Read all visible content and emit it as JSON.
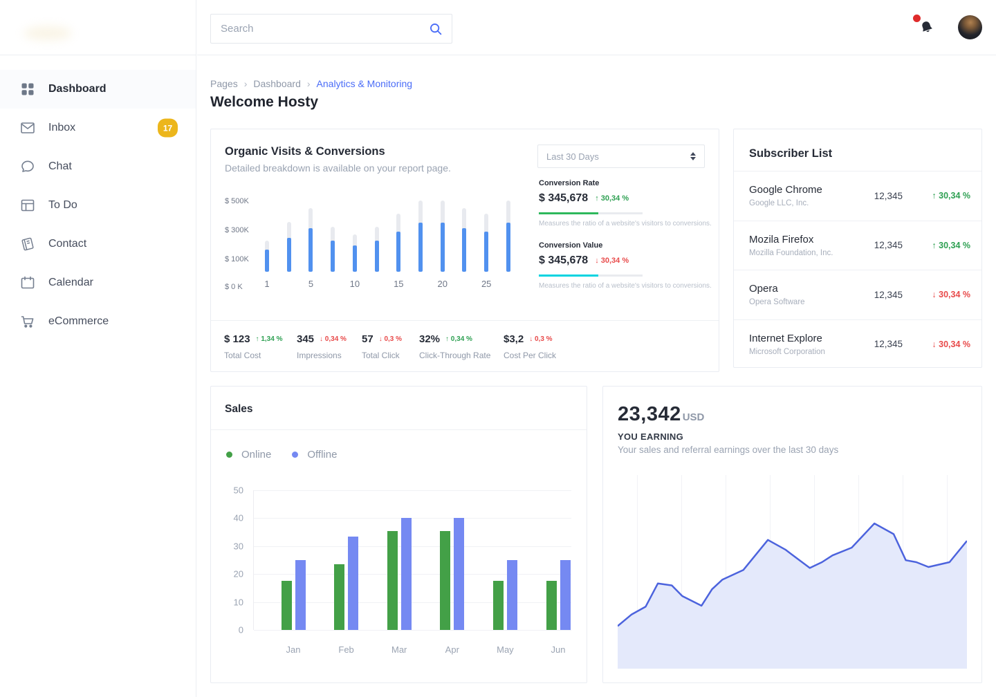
{
  "icons": {
    "trend_up": "↑",
    "trend_down": "↓",
    "chevron": "›"
  },
  "colors": {
    "accent_blue": "#4a6cf7",
    "positive": "#2ea052",
    "negative": "#e84a4a",
    "badge_yellow": "#ecb61c"
  },
  "sidebar": {
    "items": [
      {
        "label": "Dashboard",
        "icon": "dashboard-grid",
        "active": true
      },
      {
        "label": "Inbox",
        "icon": "envelope",
        "badge": "17"
      },
      {
        "label": "Chat",
        "icon": "chat-bubble"
      },
      {
        "label": "To Do",
        "icon": "layout"
      },
      {
        "label": "Contact",
        "icon": "book"
      },
      {
        "label": "Calendar",
        "icon": "calendar"
      },
      {
        "label": "eCommerce",
        "icon": "cart"
      }
    ]
  },
  "topbar": {
    "search_placeholder": "Search"
  },
  "breadcrumb": {
    "items": [
      "Pages",
      "Dashboard",
      "Analytics & Monitoring"
    ]
  },
  "page_title": "Welcome Hosty",
  "organic": {
    "title": "Organic Visits & Conversions",
    "subtitle": "Detailed breakdown is available on your report page.",
    "period_select": "Last 30 Days",
    "chart_data": {
      "type": "bar",
      "stacked": true,
      "x_labels": [
        "1",
        "5",
        "10",
        "15",
        "20",
        "25"
      ],
      "y_labels": [
        "$ 500K",
        "$ 300K",
        "$ 100K",
        "$ 0 K"
      ],
      "ylim": [
        0,
        550
      ],
      "unit": "K$",
      "series": [
        {
          "name": "visits",
          "color": "#5191ef",
          "values": [
            160,
            245,
            310,
            225,
            190,
            225,
            285,
            350,
            350,
            310,
            285,
            350
          ]
        },
        {
          "name": "total",
          "color": "#e8eaef",
          "values": [
            225,
            355,
            455,
            320,
            265,
            320,
            415,
            510,
            510,
            455,
            415,
            510
          ]
        }
      ]
    },
    "metrics": [
      {
        "label": "Conversion Rate",
        "value": "$ 345,678",
        "delta": "30,34 %",
        "trend": "up",
        "bar_color": "#2eb85c",
        "bar_pct": 57,
        "caption": "Measures the ratio of a website's visitors to conversions."
      },
      {
        "label": "Conversion Value",
        "value": "$ 345,678",
        "delta": "30,34 %",
        "trend": "down",
        "bar_color": "#00d3e0",
        "bar_pct": 57,
        "caption": "Measures the ratio of a website's visitors to conversions."
      }
    ],
    "stats": [
      {
        "value": "$ 123",
        "delta": "1,34 %",
        "trend": "up",
        "label": "Total Cost"
      },
      {
        "value": "345",
        "delta": "0,34 %",
        "trend": "down",
        "label": "Impressions"
      },
      {
        "value": "57",
        "delta": "0,3 %",
        "trend": "down",
        "label": "Total Click"
      },
      {
        "value": "32%",
        "delta": "0,34 %",
        "trend": "up",
        "label": "Click-Through Rate"
      },
      {
        "value": "$3,2",
        "delta": "0,3 %",
        "trend": "down",
        "label": "Cost Per Click"
      }
    ]
  },
  "subscribers": {
    "title": "Subscriber List",
    "items": [
      {
        "name": "Google Chrome",
        "company": "Google LLC, Inc.",
        "count": "12,345",
        "delta": "30,34 %",
        "trend": "up"
      },
      {
        "name": "Mozila Firefox",
        "company": "Mozilla Foundation, Inc.",
        "count": "12,345",
        "delta": "30,34 %",
        "trend": "up"
      },
      {
        "name": "Opera",
        "company": "Opera Software",
        "count": "12,345",
        "delta": "30,34 %",
        "trend": "down"
      },
      {
        "name": "Internet Explore",
        "company": "Microsoft Corporation",
        "count": "12,345",
        "delta": "30,34 %",
        "trend": "down"
      }
    ]
  },
  "sales": {
    "title": "Sales",
    "chart_data": {
      "type": "bar",
      "categories": [
        "Jan",
        "Feb",
        "Mar",
        "Apr",
        "May",
        "Jun"
      ],
      "series": [
        {
          "name": "Online",
          "color": "#43a047",
          "values": [
            17.5,
            23.5,
            35.5,
            35.5,
            17.5,
            17.5
          ]
        },
        {
          "name": "Offline",
          "color": "#7589f2",
          "values": [
            25,
            33.5,
            40,
            40,
            25,
            25
          ]
        }
      ],
      "ylim": [
        0,
        50
      ],
      "yticks": [
        0,
        10,
        20,
        30,
        40,
        50
      ],
      "legend_position": "top-left",
      "grid": true
    }
  },
  "earnings": {
    "amount": "23,342",
    "currency": "USD",
    "label": "YOU EARNING",
    "subtitle": "Your sales and referral earnings over the last 30 days",
    "chart_data": {
      "type": "area",
      "color": "#4c63dd",
      "fill": "#e4e9fb",
      "grid": "vertical",
      "points": [
        [
          0,
          0.22
        ],
        [
          0.04,
          0.28
        ],
        [
          0.08,
          0.32
        ],
        [
          0.115,
          0.44
        ],
        [
          0.155,
          0.43
        ],
        [
          0.185,
          0.375
        ],
        [
          0.24,
          0.325
        ],
        [
          0.27,
          0.41
        ],
        [
          0.3,
          0.46
        ],
        [
          0.36,
          0.51
        ],
        [
          0.43,
          0.665
        ],
        [
          0.48,
          0.615
        ],
        [
          0.55,
          0.52
        ],
        [
          0.585,
          0.55
        ],
        [
          0.615,
          0.585
        ],
        [
          0.67,
          0.625
        ],
        [
          0.735,
          0.75
        ],
        [
          0.79,
          0.695
        ],
        [
          0.825,
          0.56
        ],
        [
          0.855,
          0.55
        ],
        [
          0.89,
          0.525
        ],
        [
          0.95,
          0.55
        ],
        [
          1,
          0.66
        ]
      ]
    }
  }
}
